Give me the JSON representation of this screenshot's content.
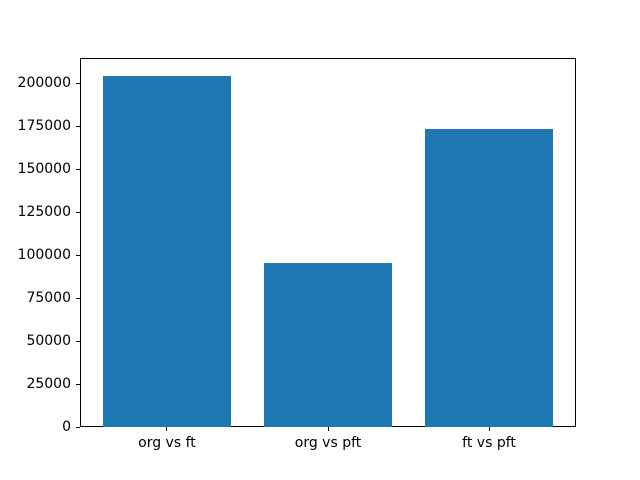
{
  "chart_data": {
    "type": "bar",
    "title": "",
    "xlabel": "",
    "ylabel": "",
    "categories": [
      "org vs ft",
      "org vs pft",
      "ft vs pft"
    ],
    "values": [
      204500,
      95400,
      173300
    ],
    "ylim": [
      0,
      214725
    ],
    "yticks": [
      0,
      25000,
      50000,
      75000,
      100000,
      125000,
      150000,
      175000,
      200000
    ],
    "bar_color": "#1f77b4",
    "grid": false,
    "legend": "none",
    "background_color": "#ffffff",
    "spine_color": "#000000"
  }
}
